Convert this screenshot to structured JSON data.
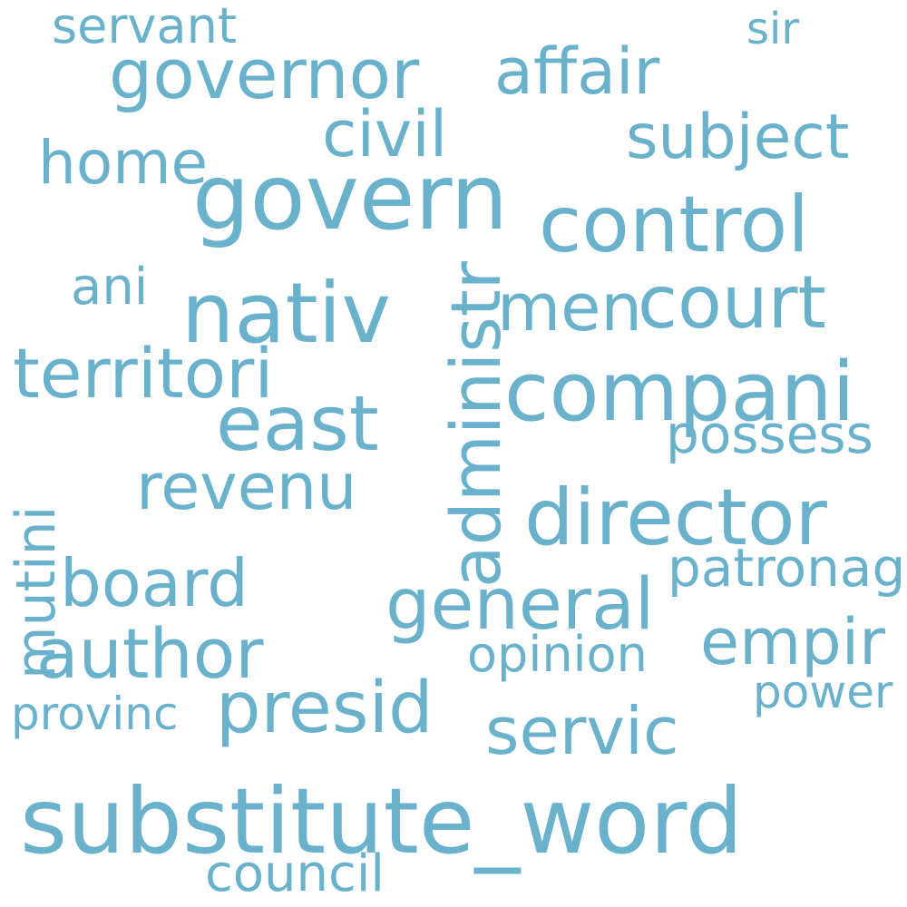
{
  "word_color": "#6ab2cc",
  "background": "#ffffff",
  "words": [
    "servant",
    "sir",
    "governor",
    "affair",
    "civil",
    "subject",
    "home",
    "govern",
    "control",
    "administr",
    "nativ",
    "men",
    "court",
    "ani",
    "territori",
    "compani",
    "east",
    "possess",
    "mutini",
    "revenu",
    "director",
    "board",
    "general",
    "patronag",
    "author",
    "empir",
    "opinion",
    "presid",
    "servic",
    "provinc",
    "power",
    "substitute_word",
    "council"
  ]
}
